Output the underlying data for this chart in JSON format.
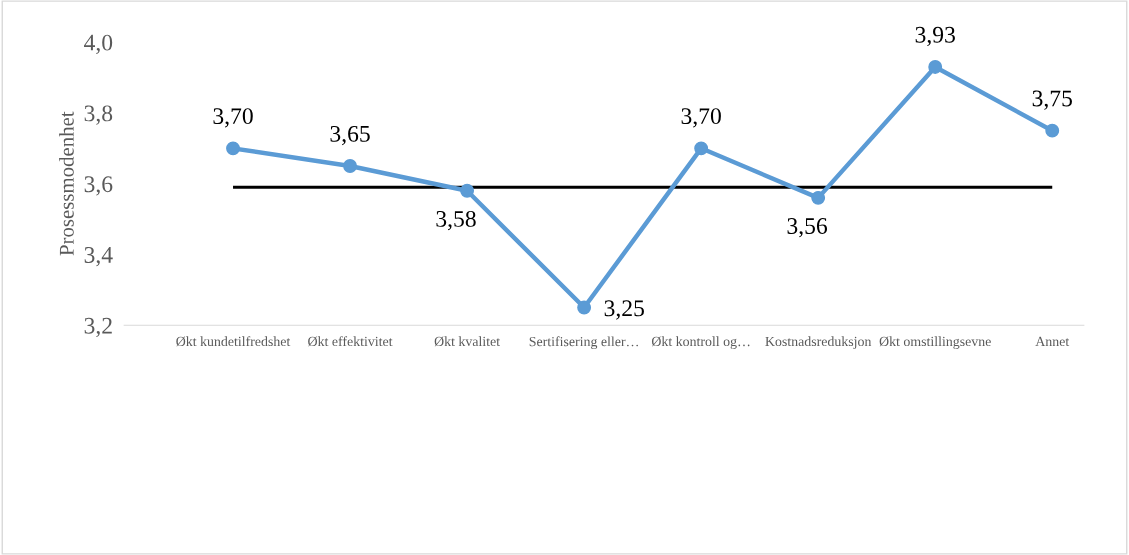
{
  "chart_data": {
    "type": "line",
    "ylabel": "Prosessmodenhet",
    "categories": [
      "Økt kundetilfredshet",
      "Økt effektivitet",
      "Økt kvalitet",
      "Sertifisering eller…",
      "Økt kontroll og…",
      "Kostnadsreduksjon",
      "Økt omstillingsevne",
      "Annet"
    ],
    "series": [
      {
        "color": "#5b9bd5",
        "values": [
          3.7,
          3.65,
          3.58,
          3.25,
          3.7,
          3.56,
          3.93,
          3.75
        ],
        "value_labels": [
          "3,70",
          "3,65",
          "3,58",
          "3,25",
          "3,70",
          "3,56",
          "3,93",
          "3,75"
        ]
      }
    ],
    "ylim": [
      3.2,
      4.0
    ],
    "yticks": [
      {
        "value": 3.2,
        "label": "3,2"
      },
      {
        "value": 3.4,
        "label": "3,4"
      },
      {
        "value": 3.6,
        "label": "3,6"
      },
      {
        "value": 3.8,
        "label": "3,8"
      },
      {
        "value": 4.0,
        "label": "4,0"
      }
    ],
    "ref_lines": [
      {
        "axis": "y",
        "value": 3.59,
        "color": "#000000"
      }
    ],
    "marker": "circle",
    "line_style": "solid",
    "grid": false,
    "legend": false
  }
}
